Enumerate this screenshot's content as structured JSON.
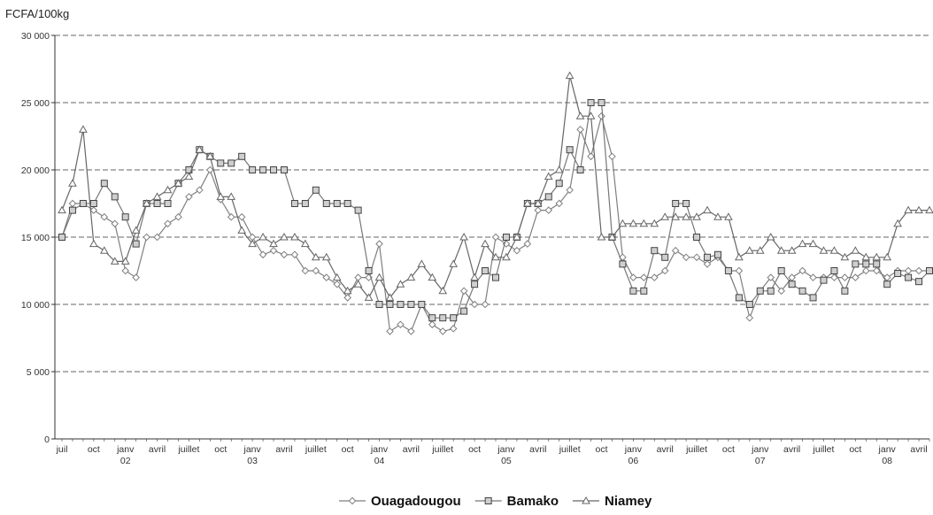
{
  "chart_data": {
    "type": "line",
    "ylabel": "FCFA/100kg",
    "ylim": [
      0,
      30000
    ],
    "yticks": [
      "0",
      "5 000",
      "10 000",
      "15 000",
      "20 000",
      "25 000",
      "30 000"
    ],
    "ytick_values": [
      0,
      5000,
      10000,
      15000,
      20000,
      25000,
      30000
    ],
    "grid": "horizontal",
    "legend_position": "bottom",
    "x_ticks": [
      {
        "i": 0,
        "month": "juil",
        "year": ""
      },
      {
        "i": 3,
        "month": "oct",
        "year": ""
      },
      {
        "i": 6,
        "month": "janv",
        "year": "02"
      },
      {
        "i": 9,
        "month": "avril",
        "year": ""
      },
      {
        "i": 12,
        "month": "juillet",
        "year": ""
      },
      {
        "i": 15,
        "month": "oct",
        "year": ""
      },
      {
        "i": 18,
        "month": "janv",
        "year": "03"
      },
      {
        "i": 21,
        "month": "avril",
        "year": ""
      },
      {
        "i": 24,
        "month": "juillet",
        "year": ""
      },
      {
        "i": 27,
        "month": "oct",
        "year": ""
      },
      {
        "i": 30,
        "month": "janv",
        "year": "04"
      },
      {
        "i": 33,
        "month": "avril",
        "year": ""
      },
      {
        "i": 36,
        "month": "juillet",
        "year": ""
      },
      {
        "i": 39,
        "month": "oct",
        "year": ""
      },
      {
        "i": 42,
        "month": "janv",
        "year": "05"
      },
      {
        "i": 45,
        "month": "avril",
        "year": ""
      },
      {
        "i": 48,
        "month": "juillet",
        "year": ""
      },
      {
        "i": 51,
        "month": "oct",
        "year": ""
      },
      {
        "i": 54,
        "month": "janv",
        "year": "06"
      },
      {
        "i": 57,
        "month": "avril",
        "year": ""
      },
      {
        "i": 60,
        "month": "juillet",
        "year": ""
      },
      {
        "i": 63,
        "month": "oct",
        "year": ""
      },
      {
        "i": 66,
        "month": "janv",
        "year": "07"
      },
      {
        "i": 69,
        "month": "avril",
        "year": ""
      },
      {
        "i": 72,
        "month": "juillet",
        "year": ""
      },
      {
        "i": 75,
        "month": "oct",
        "year": ""
      },
      {
        "i": 78,
        "month": "janv",
        "year": "08"
      },
      {
        "i": 81,
        "month": "avril",
        "year": ""
      }
    ],
    "series": [
      {
        "name": "Ouagadougou",
        "marker": "diamond",
        "values": [
          15000,
          17500,
          17500,
          17000,
          16500,
          16000,
          12500,
          12000,
          15000,
          15000,
          16000,
          16500,
          18000,
          18500,
          20000,
          17800,
          16500,
          16500,
          15000,
          13700,
          14000,
          13700,
          13700,
          12500,
          12500,
          12000,
          11500,
          10500,
          12000,
          12000,
          14500,
          8000,
          8500,
          8000,
          10000,
          8500,
          8000,
          8200,
          11000,
          10000,
          10000,
          15000,
          14500,
          14000,
          14500,
          17000,
          17000,
          17500,
          18500,
          23000,
          21000,
          24000,
          21000,
          13500,
          12000,
          12000,
          12000,
          12500,
          14000,
          13500,
          13500,
          13000,
          13500,
          12500,
          12500,
          9000,
          11000,
          12000,
          11000,
          12000,
          12500,
          12000,
          12000,
          12000,
          12000,
          12000,
          12500,
          12500,
          12000,
          12500,
          12500,
          12500,
          12500
        ],
        "color": "#7f7f7f"
      },
      {
        "name": "Bamako",
        "marker": "square",
        "values": [
          15000,
          17000,
          17500,
          17500,
          19000,
          18000,
          16500,
          14500,
          17500,
          17500,
          17500,
          19000,
          20000,
          21500,
          21000,
          20500,
          20500,
          21000,
          20000,
          20000,
          20000,
          20000,
          17500,
          17500,
          18500,
          17500,
          17500,
          17500,
          17000,
          12500,
          10000,
          10000,
          10000,
          10000,
          10000,
          9000,
          9000,
          9000,
          9500,
          11500,
          12500,
          12000,
          15000,
          15000,
          17500,
          17500,
          18000,
          19000,
          21500,
          20000,
          25000,
          25000,
          15000,
          13000,
          11000,
          11000,
          14000,
          13500,
          17500,
          17500,
          15000,
          13500,
          13700,
          12500,
          10500,
          10000,
          11000,
          11000,
          12500,
          11500,
          11000,
          10500,
          11800,
          12500,
          11000,
          13000,
          13000,
          13000,
          11500,
          12300,
          12000,
          11700,
          12500
        ],
        "color": "#777777"
      },
      {
        "name": "Niamey",
        "marker": "triangle",
        "values": [
          17000,
          19000,
          23000,
          14500,
          14000,
          13200,
          13200,
          15500,
          17500,
          18000,
          18500,
          19000,
          19500,
          21500,
          21000,
          18000,
          18000,
          15500,
          14500,
          15000,
          14500,
          15000,
          15000,
          14500,
          13500,
          13500,
          12000,
          11000,
          11500,
          10500,
          12000,
          10500,
          11500,
          12000,
          13000,
          12000,
          11000,
          13000,
          15000,
          12000,
          14500,
          13500,
          13500,
          15000,
          17500,
          17500,
          19500,
          20000,
          27000,
          24000,
          24000,
          15000,
          15000,
          16000,
          16000,
          16000,
          16000,
          16500,
          16500,
          16500,
          16500,
          17000,
          16500,
          16500,
          13500,
          14000,
          14000,
          15000,
          14000,
          14000,
          14500,
          14500,
          14000,
          14000,
          13500,
          14000,
          13500,
          13500,
          13500,
          16000,
          17000,
          17000,
          17000
        ],
        "color": "#666666"
      }
    ]
  }
}
